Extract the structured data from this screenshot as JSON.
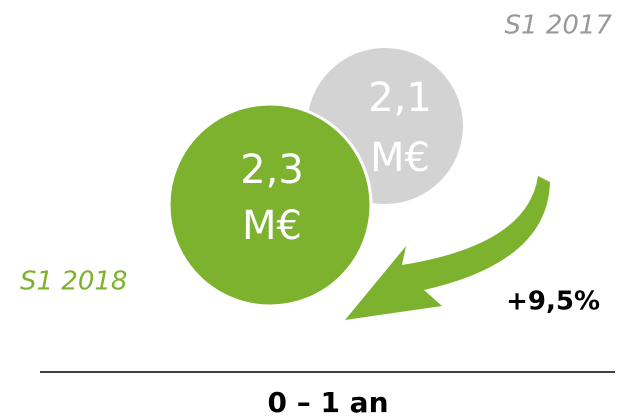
{
  "previous": {
    "period": "S1 2017",
    "amount": "2,1",
    "unit": "M€"
  },
  "current": {
    "period": "S1 2018",
    "amount": "2,3",
    "unit": "M€"
  },
  "change": "+9,5%",
  "footer": "0 – 1 an"
}
